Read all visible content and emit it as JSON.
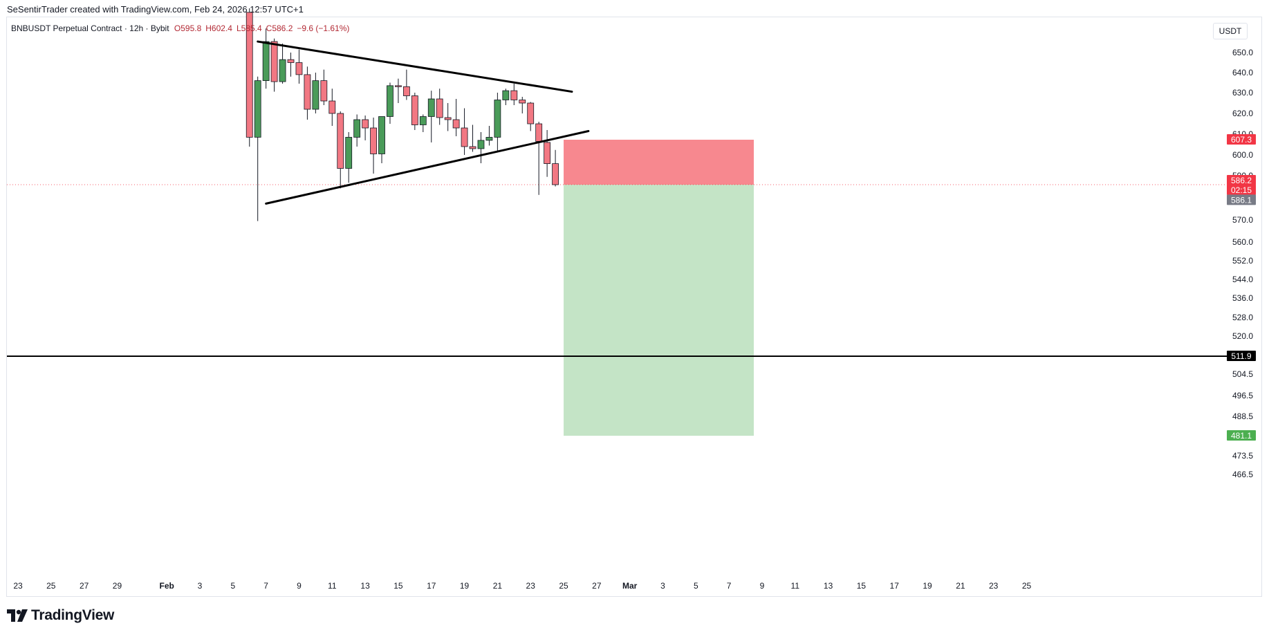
{
  "header": {
    "attribution": "SeSentirTrader created with TradingView.com, Feb 24, 2026 12:57 UTC+1"
  },
  "legend": {
    "symbol": "BNBUSDT Perpetual Contract · 12h · Bybit",
    "open": "O595.8",
    "high": "H602.4",
    "low": "L585.4",
    "close": "C586.2",
    "change": "−9.6 (−1.61%)"
  },
  "price_axis": {
    "currency": "USDT",
    "tick_labels": [
      "650.0",
      "640.0",
      "630.0",
      "620.0",
      "610.0",
      "600.0",
      "590.0",
      "570.0",
      "560.0",
      "552.0",
      "544.0",
      "536.0",
      "528.0",
      "520.0",
      "504.5",
      "496.5",
      "488.5",
      "473.5",
      "466.5"
    ],
    "badges": [
      {
        "text": "607.3",
        "value": 607.3,
        "color": "#f23645"
      },
      {
        "text": "586.2",
        "value": 586.2,
        "color": "#f23645"
      },
      {
        "text": "02:15",
        "value": 586.2,
        "color": "#f23645"
      },
      {
        "text": "586.1",
        "value": 586.1,
        "color": "#787b86"
      },
      {
        "text": "511.9",
        "value": 511.9,
        "color": "#000000"
      },
      {
        "text": "481.1",
        "value": 481.1,
        "color": "#4caf50"
      }
    ]
  },
  "time_axis": {
    "tick_labels": [
      "23",
      "25",
      "27",
      "29",
      "Feb",
      "3",
      "5",
      "7",
      "9",
      "11",
      "13",
      "15",
      "17",
      "19",
      "21",
      "23",
      "25",
      "27",
      "Mar",
      "3",
      "5",
      "7",
      "9",
      "11",
      "13",
      "15",
      "17",
      "19",
      "21",
      "23",
      "25"
    ]
  },
  "chart_data": {
    "type": "candlestick",
    "title": "",
    "xlabel": "",
    "ylabel": "",
    "symbol": "BNBUSDT Perpetual Contract",
    "interval": "12h",
    "exchange": "Bybit",
    "colors": {
      "up": "#4a9b59",
      "down": "#f27883",
      "wick": "#131722"
    },
    "x_scale": "time, axis from Jan 23 2026 to Mar 25 2026",
    "y_scale": "non-linear, price in USDT",
    "candles": [
      {
        "t": "Feb 6 00:00",
        "o": 670.0,
        "h": 672.0,
        "l": 604.0,
        "c": 608.5
      },
      {
        "t": "Feb 6 12:00",
        "o": 608.5,
        "h": 638.0,
        "l": 569.5,
        "c": 636.0
      },
      {
        "t": "Feb 7 00:00",
        "o": 636.0,
        "h": 662.0,
        "l": 632.0,
        "c": 655.5
      },
      {
        "t": "Feb 7 12:00",
        "o": 655.5,
        "h": 657.0,
        "l": 630.5,
        "c": 635.5
      },
      {
        "t": "Feb 8 00:00",
        "o": 635.5,
        "h": 654.5,
        "l": 634.5,
        "c": 646.5
      },
      {
        "t": "Feb 8 12:00",
        "o": 646.5,
        "h": 650.0,
        "l": 638.0,
        "c": 645.0
      },
      {
        "t": "Feb 9 00:00",
        "o": 645.0,
        "h": 651.5,
        "l": 634.5,
        "c": 639.0
      },
      {
        "t": "Feb 9 12:00",
        "o": 639.0,
        "h": 643.0,
        "l": 617.0,
        "c": 622.0
      },
      {
        "t": "Feb 10 00:00",
        "o": 622.0,
        "h": 640.0,
        "l": 620.0,
        "c": 636.0
      },
      {
        "t": "Feb 10 12:00",
        "o": 636.0,
        "h": 641.5,
        "l": 624.0,
        "c": 626.0
      },
      {
        "t": "Feb 11 00:00",
        "o": 626.0,
        "h": 632.0,
        "l": 614.0,
        "c": 620.0
      },
      {
        "t": "Feb 11 12:00",
        "o": 620.0,
        "h": 621.0,
        "l": 584.5,
        "c": 593.5
      },
      {
        "t": "Feb 12 00:00",
        "o": 593.5,
        "h": 611.0,
        "l": 587.0,
        "c": 608.5
      },
      {
        "t": "Feb 12 12:00",
        "o": 608.5,
        "h": 619.5,
        "l": 604.0,
        "c": 617.0
      },
      {
        "t": "Feb 13 00:00",
        "o": 617.0,
        "h": 619.0,
        "l": 607.0,
        "c": 613.0
      },
      {
        "t": "Feb 13 12:00",
        "o": 613.0,
        "h": 618.0,
        "l": 591.0,
        "c": 600.5
      },
      {
        "t": "Feb 14 00:00",
        "o": 600.5,
        "h": 617.5,
        "l": 596.0,
        "c": 618.5
      },
      {
        "t": "Feb 14 12:00",
        "o": 618.5,
        "h": 635.0,
        "l": 615.0,
        "c": 633.5
      },
      {
        "t": "Feb 15 00:00",
        "o": 633.5,
        "h": 637.0,
        "l": 625.0,
        "c": 633.0
      },
      {
        "t": "Feb 15 12:00",
        "o": 633.0,
        "h": 641.5,
        "l": 626.5,
        "c": 628.5
      },
      {
        "t": "Feb 16 00:00",
        "o": 628.5,
        "h": 630.0,
        "l": 612.0,
        "c": 614.5
      },
      {
        "t": "Feb 16 12:00",
        "o": 614.5,
        "h": 619.5,
        "l": 611.0,
        "c": 618.5
      },
      {
        "t": "Feb 17 00:00",
        "o": 618.5,
        "h": 631.0,
        "l": 606.0,
        "c": 627.0
      },
      {
        "t": "Feb 17 12:00",
        "o": 627.0,
        "h": 632.0,
        "l": 614.5,
        "c": 618.0
      },
      {
        "t": "Feb 18 00:00",
        "o": 618.0,
        "h": 625.0,
        "l": 611.5,
        "c": 617.0
      },
      {
        "t": "Feb 18 12:00",
        "o": 617.0,
        "h": 627.0,
        "l": 609.0,
        "c": 613.0
      },
      {
        "t": "Feb 19 00:00",
        "o": 613.0,
        "h": 622.5,
        "l": 600.0,
        "c": 604.0
      },
      {
        "t": "Feb 19 12:00",
        "o": 604.0,
        "h": 614.5,
        "l": 601.5,
        "c": 603.0
      },
      {
        "t": "Feb 20 00:00",
        "o": 603.0,
        "h": 611.0,
        "l": 596.0,
        "c": 607.0
      },
      {
        "t": "Feb 20 12:00",
        "o": 607.0,
        "h": 614.0,
        "l": 604.5,
        "c": 608.5
      },
      {
        "t": "Feb 21 00:00",
        "o": 608.5,
        "h": 630.0,
        "l": 602.0,
        "c": 626.5
      },
      {
        "t": "Feb 21 12:00",
        "o": 626.5,
        "h": 632.0,
        "l": 624.0,
        "c": 631.0
      },
      {
        "t": "Feb 22 00:00",
        "o": 631.0,
        "h": 634.5,
        "l": 624.0,
        "c": 626.5
      },
      {
        "t": "Feb 22 12:00",
        "o": 626.5,
        "h": 628.0,
        "l": 620.0,
        "c": 625.0
      },
      {
        "t": "Feb 23 00:00",
        "o": 625.0,
        "h": 625.5,
        "l": 611.5,
        "c": 615.0
      },
      {
        "t": "Feb 23 12:00",
        "o": 615.0,
        "h": 616.0,
        "l": 581.5,
        "c": 606.5
      },
      {
        "t": "Feb 24 00:00",
        "o": 606.0,
        "h": 612.0,
        "l": 589.5,
        "c": 595.8
      },
      {
        "t": "Feb 24 12:00",
        "o": 595.8,
        "h": 602.4,
        "l": 585.4,
        "c": 586.2
      }
    ],
    "trendlines": [
      {
        "name": "upper",
        "from": {
          "t": "Feb 6 12:00",
          "price": 655.5
        },
        "to": {
          "t": "Feb 25 12:00",
          "price": 630.5
        }
      },
      {
        "name": "lower",
        "from": {
          "t": "Feb 7 00:00",
          "price": 577.5
        },
        "to": {
          "t": "Feb 26 12:00",
          "price": 611.5
        }
      }
    ],
    "horizontal_lines": [
      {
        "price": 511.9,
        "color": "#000000"
      }
    ],
    "short_position": {
      "start": "Feb 25 00:00",
      "end": "Mar 8 12:00",
      "entry": 586.2,
      "stop": 607.3,
      "target": 481.1,
      "stop_color": "#f7888f",
      "target_color": "#c4e4c6"
    },
    "last_price": 586.2,
    "countdown": "02:15",
    "grid": false
  }
}
